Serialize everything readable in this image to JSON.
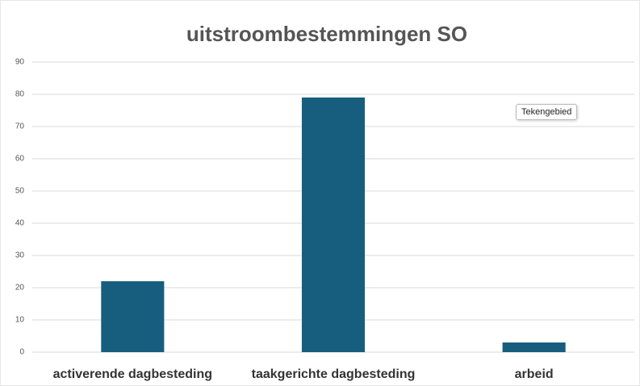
{
  "chart_data": {
    "type": "bar",
    "title": "uitstroombestemmingen SO",
    "categories": [
      "activerende dagbesteding",
      "taakgerichte dagbesteding",
      "arbeid"
    ],
    "values": [
      22,
      79,
      3
    ],
    "color": "#175e7e",
    "ylim": [
      0,
      90
    ],
    "yticks": [
      0,
      10,
      20,
      30,
      40,
      50,
      60,
      70,
      80,
      90
    ],
    "grid": true,
    "tooltip": "Tekengebied"
  }
}
